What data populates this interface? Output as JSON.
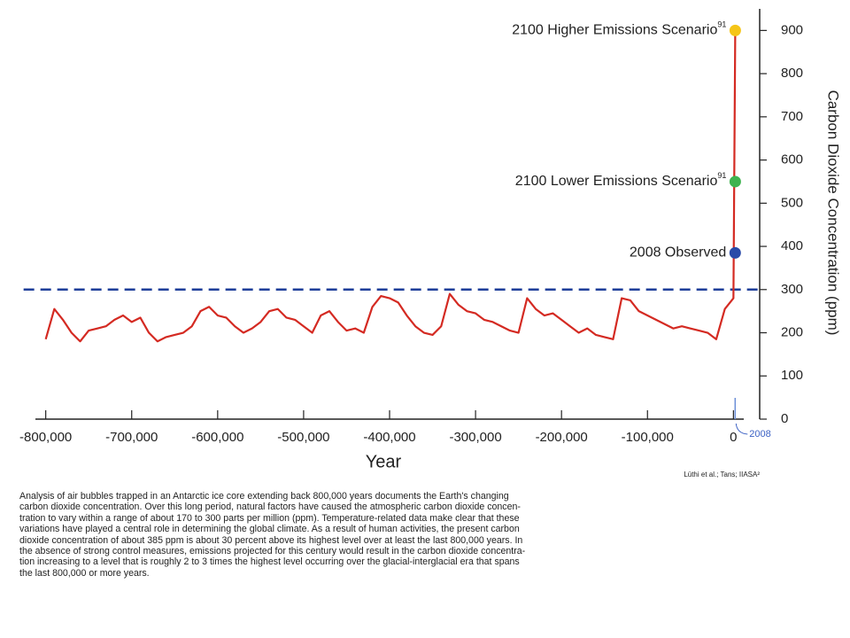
{
  "chart_data": {
    "type": "line",
    "x_label": "Year",
    "y_label": "Carbon Dioxide Concentration (ppm)",
    "xlim": [
      -812000,
      12000
    ],
    "ylim": [
      0,
      950
    ],
    "xticks": [
      {
        "value": -800000,
        "label": "-800,000"
      },
      {
        "value": -700000,
        "label": "-700,000"
      },
      {
        "value": -600000,
        "label": "-600,000"
      },
      {
        "value": -500000,
        "label": "-500,000"
      },
      {
        "value": -400000,
        "label": "-400,000"
      },
      {
        "value": -300000,
        "label": "-300,000"
      },
      {
        "value": -200000,
        "label": "-200,000"
      },
      {
        "value": -100000,
        "label": "-100,000"
      },
      0
    ],
    "yticks": [
      0,
      100,
      200,
      300,
      400,
      500,
      600,
      700,
      800,
      900
    ],
    "series": [
      {
        "color": "#d42a22",
        "x": [
          -800000,
          -790000,
          -780000,
          -770000,
          -760000,
          -750000,
          -740000,
          -730000,
          -720000,
          -710000,
          -700000,
          -690000,
          -680000,
          -670000,
          -660000,
          -650000,
          -640000,
          -630000,
          -620000,
          -610000,
          -600000,
          -590000,
          -580000,
          -570000,
          -560000,
          -550000,
          -540000,
          -530000,
          -520000,
          -510000,
          -500000,
          -490000,
          -480000,
          -470000,
          -460000,
          -450000,
          -440000,
          -430000,
          -420000,
          -410000,
          -400000,
          -390000,
          -380000,
          -370000,
          -360000,
          -350000,
          -340000,
          -330000,
          -320000,
          -310000,
          -300000,
          -290000,
          -280000,
          -270000,
          -260000,
          -250000,
          -240000,
          -230000,
          -220000,
          -210000,
          -200000,
          -190000,
          -180000,
          -170000,
          -160000,
          -150000,
          -140000,
          -130000,
          -120000,
          -110000,
          -100000,
          -90000,
          -80000,
          -70000,
          -60000,
          -50000,
          -40000,
          -30000,
          -20000,
          -10000,
          0,
          2100
        ],
        "values": [
          185,
          255,
          230,
          200,
          180,
          205,
          210,
          215,
          230,
          240,
          225,
          235,
          200,
          180,
          190,
          195,
          200,
          215,
          250,
          260,
          240,
          235,
          215,
          200,
          210,
          225,
          250,
          255,
          235,
          230,
          215,
          200,
          240,
          250,
          225,
          205,
          210,
          200,
          260,
          285,
          280,
          270,
          240,
          215,
          200,
          195,
          215,
          290,
          265,
          250,
          245,
          230,
          225,
          215,
          205,
          200,
          280,
          255,
          240,
          245,
          230,
          215,
          200,
          210,
          195,
          190,
          185,
          280,
          275,
          250,
          240,
          230,
          220,
          210,
          215,
          210,
          205,
          200,
          185,
          255,
          280,
          900
        ]
      }
    ],
    "reference_line": {
      "value": 300,
      "color": "#1f3f9a"
    },
    "markers": [
      {
        "label": "2100 Higher Emissions Scenario",
        "sup": "91",
        "x": 2100,
        "value": 900,
        "color": "#f5c518"
      },
      {
        "label": "2100 Lower Emissions Scenario",
        "sup": "91",
        "x": 2100,
        "value": 550,
        "color": "#3fb34f"
      },
      {
        "label": "2008 Observed",
        "x": 2008,
        "value": 385,
        "color": "#2a4aa8"
      }
    ],
    "annotation": "2008",
    "source": "Lüthi et al.; Tans; IIASA²",
    "caption": [
      "Analysis of air bubbles trapped in an Antarctic ice core extending back 800,000 years documents the Earth's changing",
      "carbon dioxide concentration. Over this long period, natural factors have caused the atmospheric carbon dioxide concen-",
      "tration to vary within a range of about 170 to 300 parts per million (ppm). Temperature-related data make clear that these",
      "variations have played a central role in determining the global climate. As a result of human activities, the present carbon",
      "dioxide concentration of about 385 ppm is about 30 percent above its highest level over at least the last 800,000 years. In",
      "the absence of strong control measures, emissions projected for this century would result in the carbon dioxide concentra-",
      "tion increasing to a level that is roughly 2 to 3 times the highest level occurring over the glacial-interglacial era that spans",
      "the last 800,000 or more years."
    ]
  }
}
